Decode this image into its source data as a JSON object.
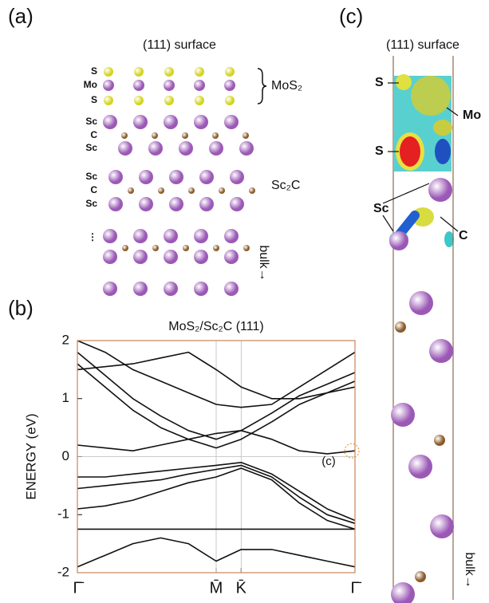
{
  "panel_a": {
    "label": "(a)",
    "subtitle": "(111) surface",
    "atom_labels": [
      "S",
      "Mo",
      "S",
      "Sc",
      "C",
      "Sc",
      "Sc",
      "C",
      "Sc",
      "⋮"
    ],
    "group_labels": [
      "MoS₂",
      "Sc₂C"
    ],
    "bulk": "bulk→"
  },
  "panel_b": {
    "label": "(b)"
  },
  "panel_c": {
    "label": "(c)",
    "subtitle": "(111) surface",
    "atom_labels": [
      "S",
      "Mo",
      "S",
      "Sc",
      "C"
    ],
    "bulk": "bulk→"
  },
  "chart_data": {
    "type": "line",
    "title": "MoS₂/Sc₂C (111)",
    "y_label": "ENERGY (eV)",
    "annotation": "(c)",
    "color": "#111111",
    "x": [
      0,
      0.1,
      0.2,
      0.3,
      0.4,
      0.5,
      0.59,
      0.7,
      0.8,
      0.9,
      1
    ],
    "series": [
      {
        "values": [
          -0.35,
          -0.35,
          -0.3,
          -0.25,
          -0.2,
          -0.15,
          -0.1,
          -0.3,
          -0.6,
          -0.9,
          -1.1
        ]
      },
      {
        "values": [
          -0.55,
          -0.5,
          -0.45,
          -0.4,
          -0.3,
          -0.22,
          -0.15,
          -0.35,
          -0.7,
          -1.0,
          -1.15
        ]
      },
      {
        "values": [
          -0.9,
          -0.85,
          -0.75,
          -0.6,
          -0.45,
          -0.35,
          -0.2,
          -0.4,
          -0.8,
          -1.1,
          -1.25
        ]
      },
      {
        "values": [
          -1.25,
          -1.25,
          -1.25,
          -1.25,
          -1.25,
          -1.25,
          -1.25,
          -1.25,
          -1.25,
          -1.25,
          -1.25
        ]
      },
      {
        "values": [
          -1.9,
          -1.7,
          -1.5,
          -1.4,
          -1.5,
          -1.8,
          -1.6,
          -1.6,
          -1.7,
          -1.8,
          -1.9
        ]
      },
      {
        "values": [
          0.2,
          0.15,
          0.1,
          0.2,
          0.3,
          0.4,
          0.45,
          0.3,
          0.1,
          0.05,
          0.1
        ]
      },
      {
        "values": [
          1.6,
          1.2,
          0.8,
          0.5,
          0.3,
          0.15,
          0.3,
          0.6,
          0.9,
          1.1,
          1.3
        ]
      },
      {
        "values": [
          1.8,
          1.4,
          1.0,
          0.7,
          0.45,
          0.3,
          0.45,
          0.75,
          1.05,
          1.25,
          1.45
        ]
      },
      {
        "values": [
          2,
          1.8,
          1.5,
          1.3,
          1.1,
          0.9,
          0.85,
          0.9,
          1.2,
          1.5,
          1.8
        ]
      },
      {
        "values": [
          1.5,
          1.55,
          1.6,
          1.7,
          1.8,
          1.5,
          1.2,
          1.0,
          1.0,
          1.1,
          1.2
        ]
      }
    ],
    "xlim": [
      0,
      1
    ],
    "xticks": [
      {
        "value": 0,
        "label": "Γ̄"
      },
      {
        "value": 0.5,
        "label": "M̄"
      },
      {
        "value": 0.59,
        "label": "K̄"
      },
      {
        "value": 1,
        "label": "Γ̄"
      }
    ],
    "ylim": [
      -2,
      2
    ],
    "yticks": [
      -2,
      -1,
      0,
      1,
      2
    ],
    "grid": true
  }
}
